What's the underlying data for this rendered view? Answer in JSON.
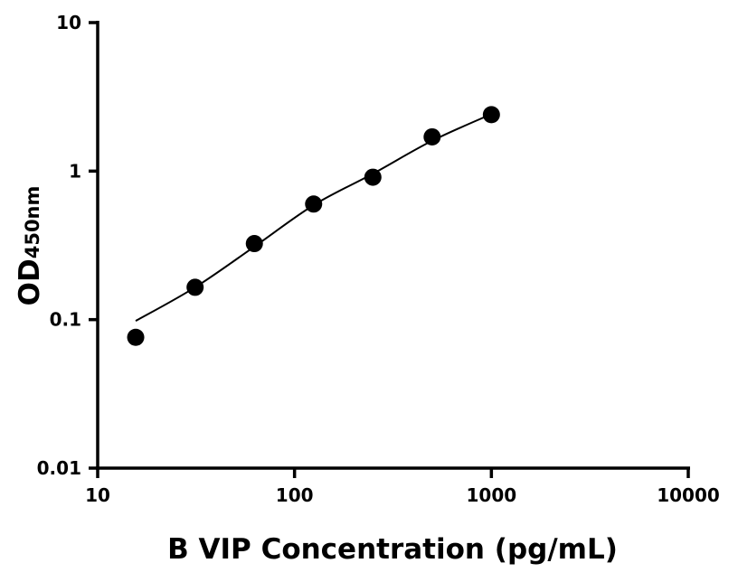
{
  "chart_data": {
    "type": "scatter",
    "title": "",
    "xlabel": "B VIP Concentration (pg/mL)",
    "ylabel": "OD",
    "ylabel_subscript": "450nm",
    "x_scale": "log",
    "y_scale": "log",
    "xlim": [
      10,
      10000
    ],
    "ylim": [
      0.01,
      10
    ],
    "x_ticks": [
      10,
      100,
      1000,
      10000
    ],
    "x_tick_labels": [
      "10",
      "100",
      "1000",
      "10000"
    ],
    "y_ticks": [
      0.01,
      0.1,
      1,
      10
    ],
    "y_tick_labels": [
      "0.01",
      "0.1",
      "1",
      "10"
    ],
    "grid": false,
    "legend": "none",
    "color": "#000000",
    "series": [
      {
        "x": [
          15.6,
          31.25,
          62.5,
          125,
          250,
          500,
          1000
        ],
        "y": [
          0.076,
          0.165,
          0.325,
          0.6,
          0.91,
          1.7,
          2.4
        ]
      }
    ],
    "fit_curve": {
      "x": [
        15.6,
        31.25,
        62.5,
        125,
        250,
        500,
        1000
      ],
      "y": [
        0.098,
        0.165,
        0.31,
        0.59,
        0.96,
        1.6,
        2.42
      ]
    }
  }
}
